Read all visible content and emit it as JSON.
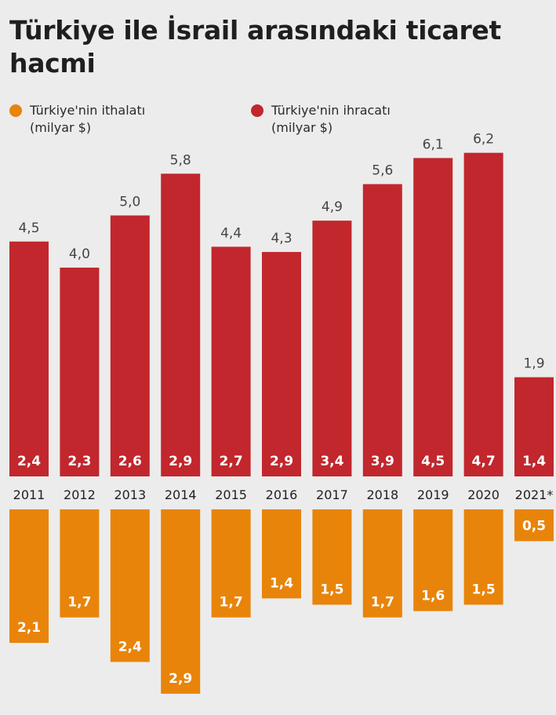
{
  "chart_data": {
    "type": "bar",
    "title": "Türkiye ile İsrail arasındaki ticaret hacmi",
    "categories": [
      "2011",
      "2012",
      "2013",
      "2014",
      "2015",
      "2016",
      "2017",
      "2018",
      "2019",
      "2020",
      "2021*"
    ],
    "series": [
      {
        "name": "Türkiye'nin ihracatı",
        "unit": "(milyar $)",
        "color": "#c1272d",
        "values": [
          2.4,
          2.3,
          2.6,
          2.9,
          2.7,
          2.9,
          3.4,
          3.9,
          4.5,
          4.7,
          1.4
        ],
        "labels": [
          "2,4",
          "2,3",
          "2,6",
          "2,9",
          "2,7",
          "2,9",
          "3,4",
          "3,9",
          "4,5",
          "4,7",
          "1,4"
        ]
      },
      {
        "name": "Türkiye'nin ithalatı",
        "unit": "(milyar $)",
        "color": "#e8840a",
        "values": [
          2.1,
          1.7,
          2.4,
          2.9,
          1.7,
          1.4,
          1.5,
          1.7,
          1.6,
          1.5,
          0.5
        ],
        "labels": [
          "2,1",
          "1,7",
          "2,4",
          "2,9",
          "1,7",
          "1,4",
          "1,5",
          "1,7",
          "1,6",
          "1,5",
          "0,5"
        ]
      }
    ],
    "totals": {
      "values": [
        4.5,
        4.0,
        5.0,
        5.8,
        4.4,
        4.3,
        4.9,
        5.6,
        6.1,
        6.2,
        1.9
      ],
      "labels": [
        "4,5",
        "4,0",
        "5,0",
        "5,8",
        "4,4",
        "4,3",
        "4,9",
        "5,6",
        "6,1",
        "6,2",
        "1,9"
      ]
    },
    "legend": "top",
    "colors": {
      "total_label": "#444444",
      "year_label": "#222222",
      "bar_label": "#ffffff"
    }
  }
}
